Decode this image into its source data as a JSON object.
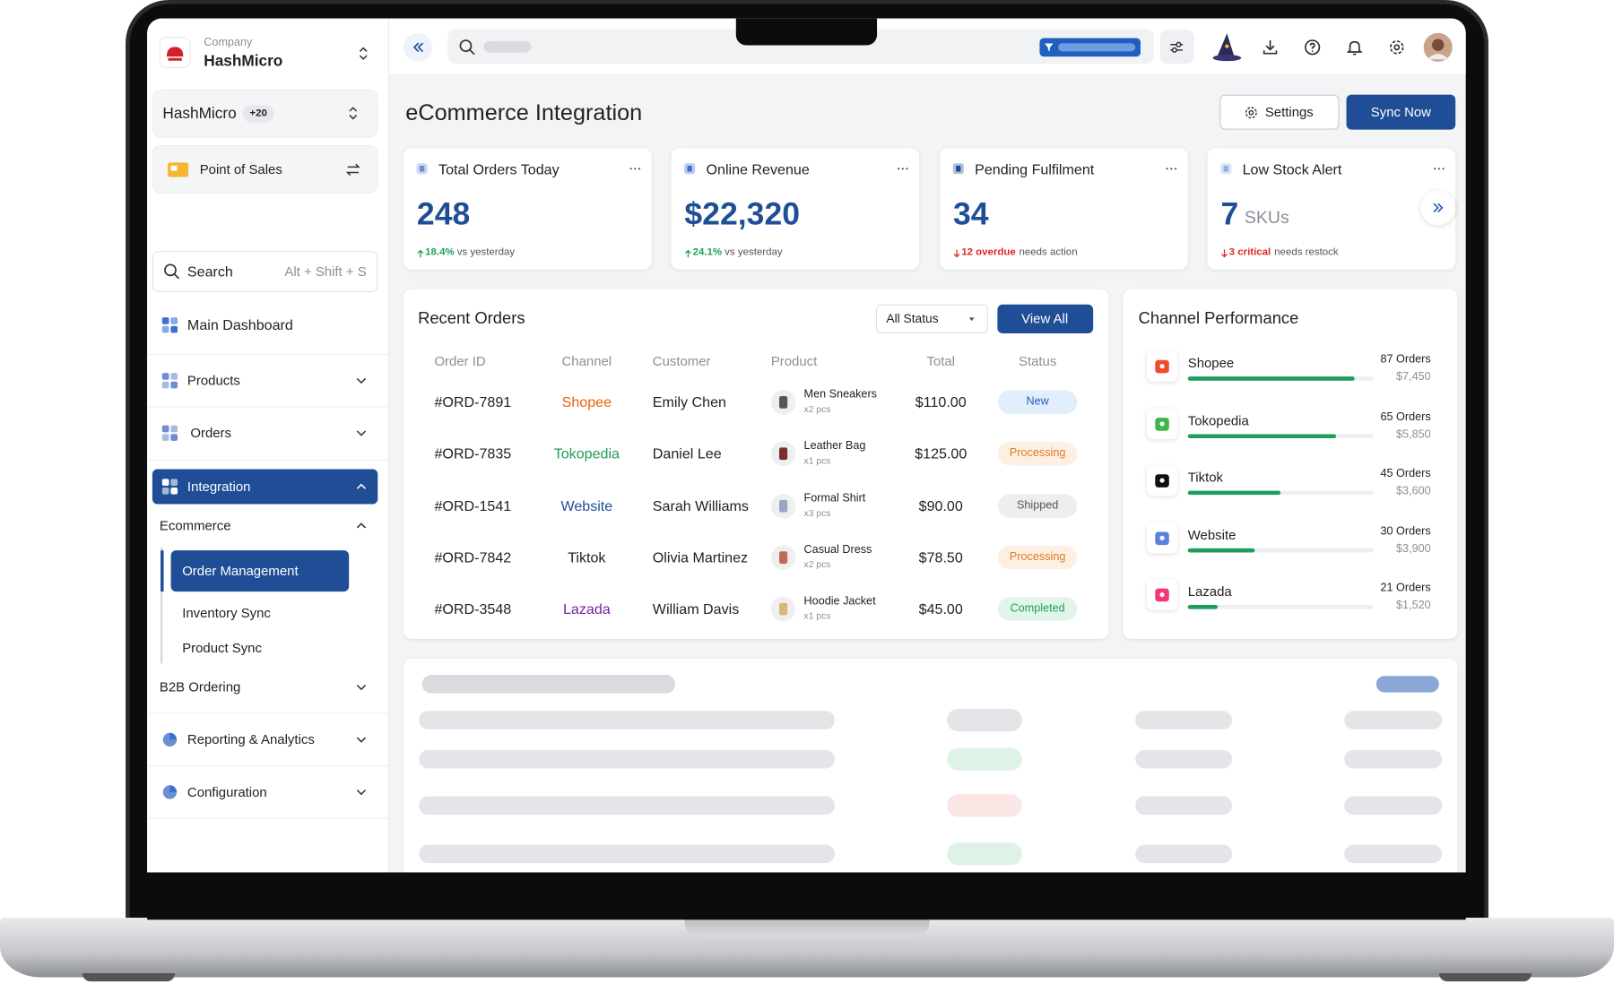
{
  "sidebar": {
    "company_label": "Company",
    "company": "HashMicro",
    "branch": "HashMicro",
    "branch_count": "+20",
    "module": "Point of Sales",
    "search_placeholder": "Search",
    "search_shortcut": "Alt + Shift + S",
    "menu": [
      "Main Dashboard",
      "Products",
      "Orders",
      "Integration"
    ],
    "submenu_title": "Ecommerce",
    "submenu": [
      "Order Management",
      "Inventory Sync",
      "Product Sync"
    ],
    "menu_after": [
      "B2B Ordering",
      "Reporting & Analytics",
      "Configuration"
    ]
  },
  "header": {
    "title": "eCommerce Integration",
    "settings": "Settings",
    "sync": "Sync Now"
  },
  "kpis": [
    {
      "title": "Total Orders Today",
      "value": "248",
      "change": "18.4%",
      "note": "vs yesterday",
      "trend_color": "#1e9e5a"
    },
    {
      "title": "Online Revenue",
      "value": "$22,320",
      "change": "24.1%",
      "note": "vs yesterday",
      "trend_color": "#1e9e5a"
    },
    {
      "title": "Pending Fulfilment",
      "value": "34",
      "change": "12 overdue",
      "note": "needs action",
      "trend_color": "#e02424"
    },
    {
      "title": "Low Stock Alert",
      "value": "7",
      "unit": "SKUs",
      "change": "3 critical",
      "note": "needs restock",
      "trend_color": "#e02424"
    }
  ],
  "recent_orders": {
    "title": "Recent Orders",
    "filter": "All Status",
    "view_all": "View All",
    "columns": [
      "Order ID",
      "Channel",
      "Customer",
      "Product",
      "Total",
      "Status"
    ],
    "rows": [
      {
        "id": "#ORD-7891",
        "channel": "Shopee",
        "channel_color": "#e8620c",
        "customer": "Emily Chen",
        "product": "Men Sneakers",
        "qty": "x2 pcs",
        "total": "$110.00",
        "status": "New",
        "status_color": "#1f5fbf",
        "status_bg": "#e3eefc"
      },
      {
        "id": "#ORD-7835",
        "channel": "Tokopedia",
        "channel_color": "#1f9d55",
        "customer": "Daniel Lee",
        "product": "Leather Bag",
        "qty": "x1 pcs",
        "total": "$125.00",
        "status": "Processing",
        "status_color": "#e07a1f",
        "status_bg": "#fdf0e3"
      },
      {
        "id": "#ORD-1541",
        "channel": "Website",
        "channel_color": "#1f4e96",
        "customer": "Sarah Williams",
        "product": "Formal Shirt",
        "qty": "x3 pcs",
        "total": "$90.00",
        "status": "Shipped",
        "status_color": "#555555",
        "status_bg": "#eeeeee"
      },
      {
        "id": "#ORD-7842",
        "channel": "Tiktok",
        "channel_color": "#222222",
        "customer": "Olivia Martinez",
        "product": "Casual Dress",
        "qty": "x2 pcs",
        "total": "$78.50",
        "status": "Processing",
        "status_color": "#e07a1f",
        "status_bg": "#fdf0e3"
      },
      {
        "id": "#ORD-3548",
        "channel": "Lazada",
        "channel_color": "#7b1fa2",
        "customer": "William Davis",
        "product": "Hoodie Jacket",
        "qty": "x1 pcs",
        "total": "$45.00",
        "status": "Completed",
        "status_color": "#1e9e5a",
        "status_bg": "#e2f5ea"
      }
    ]
  },
  "channel_performance": {
    "title": "Channel Performance",
    "channels": [
      {
        "name": "Shopee",
        "orders": "87 Orders",
        "revenue": "$7,450",
        "progress": 90,
        "color": "#ee4d2d"
      },
      {
        "name": "Tokopedia",
        "orders": "65 Orders",
        "revenue": "$5,850",
        "progress": 80,
        "color": "#42b549"
      },
      {
        "name": "Tiktok",
        "orders": "45 Orders",
        "revenue": "$3,600",
        "progress": 50,
        "color": "#111111"
      },
      {
        "name": "Website",
        "orders": "30 Orders",
        "revenue": "$3,900",
        "progress": 36,
        "color": "#5b7fe0"
      },
      {
        "name": "Lazada",
        "orders": "21 Orders",
        "revenue": "$1,520",
        "progress": 16,
        "color": "#f5367a"
      }
    ]
  }
}
